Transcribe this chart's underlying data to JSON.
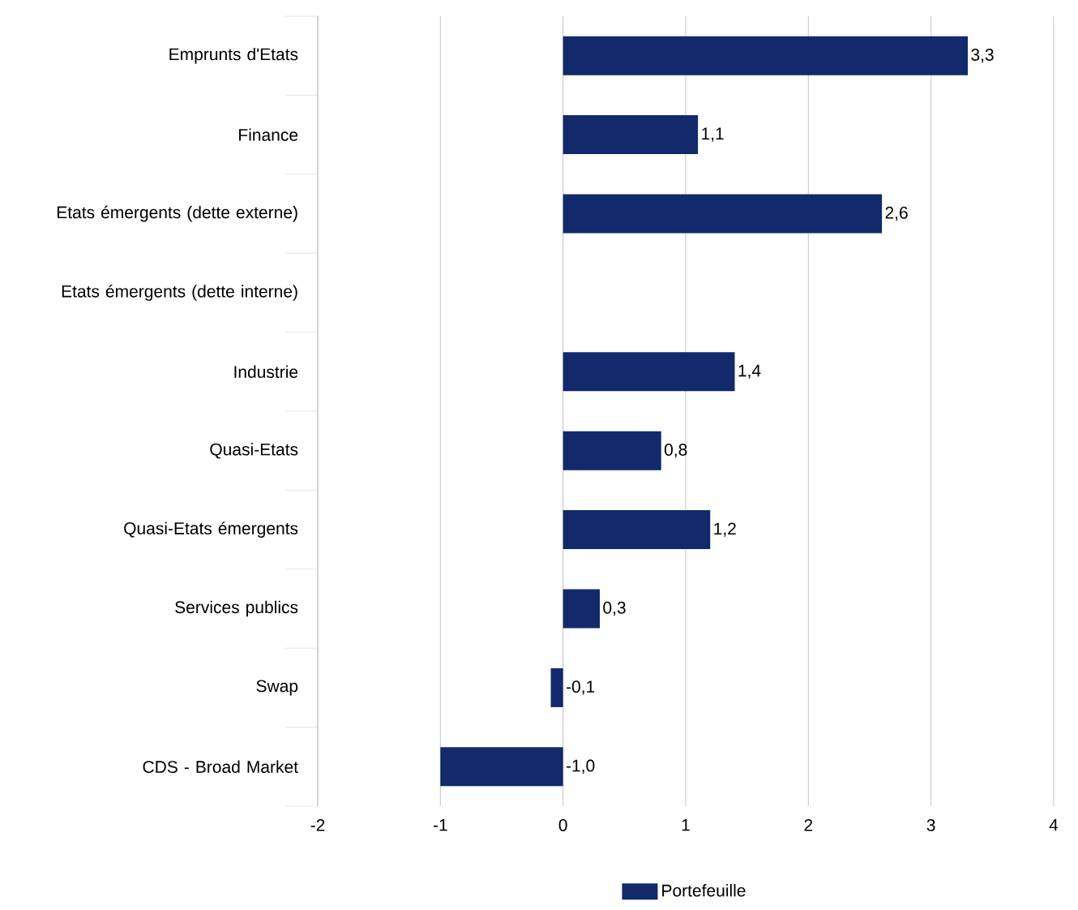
{
  "chart_data": {
    "type": "bar",
    "orientation": "horizontal",
    "categories": [
      "Emprunts d'Etats",
      "Finance",
      "Etats émergents (dette externe)",
      "Etats émergents (dette interne)",
      "Industrie",
      "Quasi-Etats",
      "Quasi-Etats émergents",
      "Services publics",
      "Swap",
      "CDS - Broad Market"
    ],
    "series": [
      {
        "name": "Portefeuille",
        "color": "#12296b",
        "values": [
          3.3,
          1.1,
          2.6,
          null,
          1.4,
          0.8,
          1.2,
          0.3,
          -0.1,
          -1.0
        ],
        "value_labels": [
          "3,3",
          "1,1",
          "2,6",
          null,
          "1,4",
          "0,8",
          "1,2",
          "0,3",
          "-0,1",
          "-1,0"
        ]
      }
    ],
    "xlim": [
      -2,
      4
    ],
    "xticks": [
      -2,
      -1,
      0,
      1,
      2,
      3,
      4
    ],
    "grid": "x",
    "legend": "bottom"
  }
}
